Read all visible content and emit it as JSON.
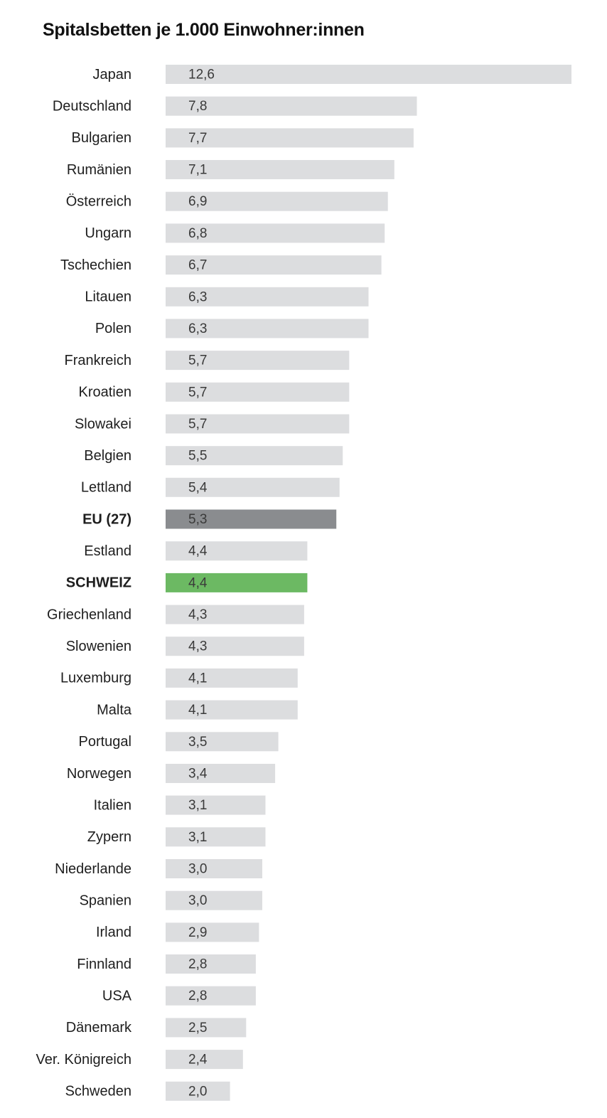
{
  "chart_data": {
    "type": "bar",
    "orientation": "horizontal",
    "title": "Spitalsbetten je 1.000 Einwohner:innen",
    "categories": [
      "Japan",
      "Deutschland",
      "Bulgarien",
      "Rumänien",
      "Österreich",
      "Ungarn",
      "Tschechien",
      "Litauen",
      "Polen",
      "Frankreich",
      "Kroatien",
      "Slowakei",
      "Belgien",
      "Lettland",
      "EU (27)",
      "Estland",
      "SCHWEIZ",
      "Griechenland",
      "Slowenien",
      "Luxemburg",
      "Malta",
      "Portugal",
      "Norwegen",
      "Italien",
      "Zypern",
      "Niederlande",
      "Spanien",
      "Irland",
      "Finnland",
      "USA",
      "Dänemark",
      "Ver. Königreich",
      "Schweden"
    ],
    "values": [
      12.6,
      7.8,
      7.7,
      7.1,
      6.9,
      6.8,
      6.7,
      6.3,
      6.3,
      5.7,
      5.7,
      5.7,
      5.5,
      5.4,
      5.3,
      4.4,
      4.4,
      4.3,
      4.3,
      4.1,
      4.1,
      3.5,
      3.4,
      3.1,
      3.1,
      3.0,
      3.0,
      2.9,
      2.8,
      2.8,
      2.5,
      2.4,
      2.0
    ],
    "value_labels": [
      "12,6",
      "7,8",
      "7,7",
      "7,1",
      "6,9",
      "6,8",
      "6,7",
      "6,3",
      "6,3",
      "5,7",
      "5,7",
      "5,7",
      "5,5",
      "5,4",
      "5,3",
      "4,4",
      "4,4",
      "4,3",
      "4,3",
      "4,1",
      "4,1",
      "3,5",
      "3,4",
      "3,1",
      "3,1",
      "3,0",
      "3,0",
      "2,9",
      "2,8",
      "2,8",
      "2,5",
      "2,4",
      "2,0"
    ],
    "highlights": {
      "EU (27)": {
        "bar_color": "#8a8c8f",
        "label_color": "#111111",
        "label_weight": "bold"
      },
      "SCHWEIZ": {
        "bar_color": "#6cb963",
        "label_color": "#4aa83f",
        "label_weight": "bold"
      }
    },
    "xlim": [
      0,
      12.6
    ],
    "xlabel": "",
    "ylabel": "",
    "grid": false,
    "legend": "none"
  },
  "colors": {
    "bar_default": "#dcdddf",
    "label_default": "#1e1e1e",
    "value_label": "#3a3a3a"
  }
}
